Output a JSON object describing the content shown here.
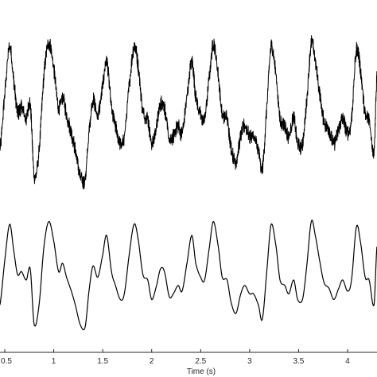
{
  "chart_data": [
    {
      "type": "line",
      "title": "",
      "xlabel": "",
      "ylabel": "",
      "xlim": [
        0.45,
        4.3
      ],
      "ylim": [
        -1.0,
        1.0
      ],
      "grid": false,
      "series": [
        {
          "color": "#000000",
          "style": "noisy",
          "x": [
            0.45,
            0.5,
            0.55,
            0.59,
            0.63,
            0.67,
            0.72,
            0.76,
            0.8,
            0.85,
            0.9,
            0.95,
            1.0,
            1.05,
            1.09,
            1.13,
            1.18,
            1.22,
            1.27,
            1.32,
            1.36,
            1.4,
            1.45,
            1.5,
            1.54,
            1.59,
            1.63,
            1.68,
            1.72,
            1.77,
            1.82,
            1.86,
            1.91,
            1.96,
            2.0,
            2.05,
            2.09,
            2.13,
            2.18,
            2.22,
            2.27,
            2.31,
            2.36,
            2.41,
            2.45,
            2.5,
            2.54,
            2.59,
            2.63,
            2.68,
            2.72,
            2.77,
            2.81,
            2.86,
            2.91,
            2.95,
            3.0,
            3.04,
            3.09,
            3.13,
            3.18,
            3.22,
            3.27,
            3.31,
            3.36,
            3.4,
            3.45,
            3.49,
            3.54,
            3.58,
            3.63,
            3.67,
            3.72,
            3.76,
            3.81,
            3.86,
            3.91,
            3.95,
            4.0,
            4.04,
            4.09,
            4.13,
            4.18,
            4.22,
            4.27,
            4.3
          ],
          "y": [
            -0.55,
            0.25,
            0.9,
            0.45,
            0.0,
            0.05,
            -0.1,
            0.1,
            -0.9,
            -0.55,
            0.5,
            0.95,
            0.6,
            0.05,
            0.2,
            -0.05,
            -0.3,
            -0.55,
            -0.9,
            -0.95,
            -0.3,
            0.15,
            -0.05,
            0.35,
            0.7,
            0.05,
            -0.2,
            -0.45,
            -0.35,
            0.35,
            0.9,
            0.65,
            0.0,
            -0.1,
            -0.45,
            -0.2,
            0.1,
            0.05,
            -0.4,
            -0.35,
            -0.2,
            -0.3,
            0.2,
            0.7,
            0.2,
            -0.05,
            -0.1,
            0.5,
            0.95,
            0.5,
            -0.05,
            -0.1,
            -0.5,
            -0.7,
            -0.35,
            -0.2,
            -0.35,
            -0.35,
            -0.55,
            -0.8,
            0.15,
            0.9,
            0.5,
            -0.1,
            -0.2,
            -0.35,
            -0.1,
            -0.45,
            -0.45,
            0.1,
            0.95,
            0.7,
            0.2,
            -0.15,
            -0.25,
            -0.45,
            -0.25,
            -0.1,
            -0.3,
            -0.1,
            0.85,
            0.6,
            -0.05,
            -0.1,
            -0.55,
            0.5
          ]
        },
        {
          "color": "#000000",
          "style": "smooth",
          "x": [
            0.45,
            0.5,
            0.55,
            0.59,
            0.63,
            0.67,
            0.72,
            0.76,
            0.8,
            0.85,
            0.9,
            0.95,
            1.0,
            1.05,
            1.09,
            1.13,
            1.18,
            1.22,
            1.27,
            1.32,
            1.36,
            1.4,
            1.45,
            1.5,
            1.54,
            1.59,
            1.63,
            1.68,
            1.72,
            1.77,
            1.82,
            1.86,
            1.91,
            1.96,
            2.0,
            2.05,
            2.09,
            2.13,
            2.18,
            2.22,
            2.27,
            2.31,
            2.36,
            2.41,
            2.45,
            2.5,
            2.54,
            2.59,
            2.63,
            2.68,
            2.72,
            2.77,
            2.81,
            2.86,
            2.91,
            2.95,
            3.0,
            3.04,
            3.09,
            3.13,
            3.18,
            3.22,
            3.27,
            3.31,
            3.36,
            3.4,
            3.45,
            3.49,
            3.54,
            3.58,
            3.63,
            3.67,
            3.72,
            3.76,
            3.81,
            3.86,
            3.91,
            3.95,
            4.0,
            4.04,
            4.09,
            4.13,
            4.18,
            4.22,
            4.27,
            4.3
          ],
          "y": [
            -0.55,
            0.25,
            0.9,
            0.45,
            0.0,
            0.05,
            -0.1,
            0.1,
            -0.9,
            -0.55,
            0.5,
            0.95,
            0.6,
            0.05,
            0.2,
            -0.05,
            -0.3,
            -0.55,
            -0.9,
            -0.95,
            -0.3,
            0.15,
            -0.05,
            0.35,
            0.7,
            0.05,
            -0.2,
            -0.45,
            -0.35,
            0.35,
            0.9,
            0.65,
            0.0,
            -0.1,
            -0.45,
            -0.2,
            0.1,
            0.05,
            -0.4,
            -0.35,
            -0.2,
            -0.3,
            0.2,
            0.7,
            0.2,
            -0.05,
            -0.1,
            0.5,
            0.95,
            0.5,
            -0.05,
            -0.1,
            -0.5,
            -0.7,
            -0.35,
            -0.2,
            -0.35,
            -0.35,
            -0.55,
            -0.8,
            0.15,
            0.9,
            0.5,
            -0.1,
            -0.2,
            -0.35,
            -0.1,
            -0.45,
            -0.45,
            0.1,
            0.95,
            0.7,
            0.2,
            -0.15,
            -0.25,
            -0.45,
            -0.25,
            -0.1,
            -0.3,
            -0.1,
            0.85,
            0.6,
            -0.05,
            -0.1,
            -0.55,
            0.5
          ]
        }
      ],
      "x_axis": {
        "ticks": [
          0.5,
          1,
          1.5,
          2,
          2.5,
          3,
          3.5,
          4
        ],
        "tick_labels": [
          "0.5",
          "1",
          "1.5",
          "2",
          "2.5",
          "3",
          "3.5",
          "4"
        ],
        "label": "Time (s)"
      }
    }
  ]
}
